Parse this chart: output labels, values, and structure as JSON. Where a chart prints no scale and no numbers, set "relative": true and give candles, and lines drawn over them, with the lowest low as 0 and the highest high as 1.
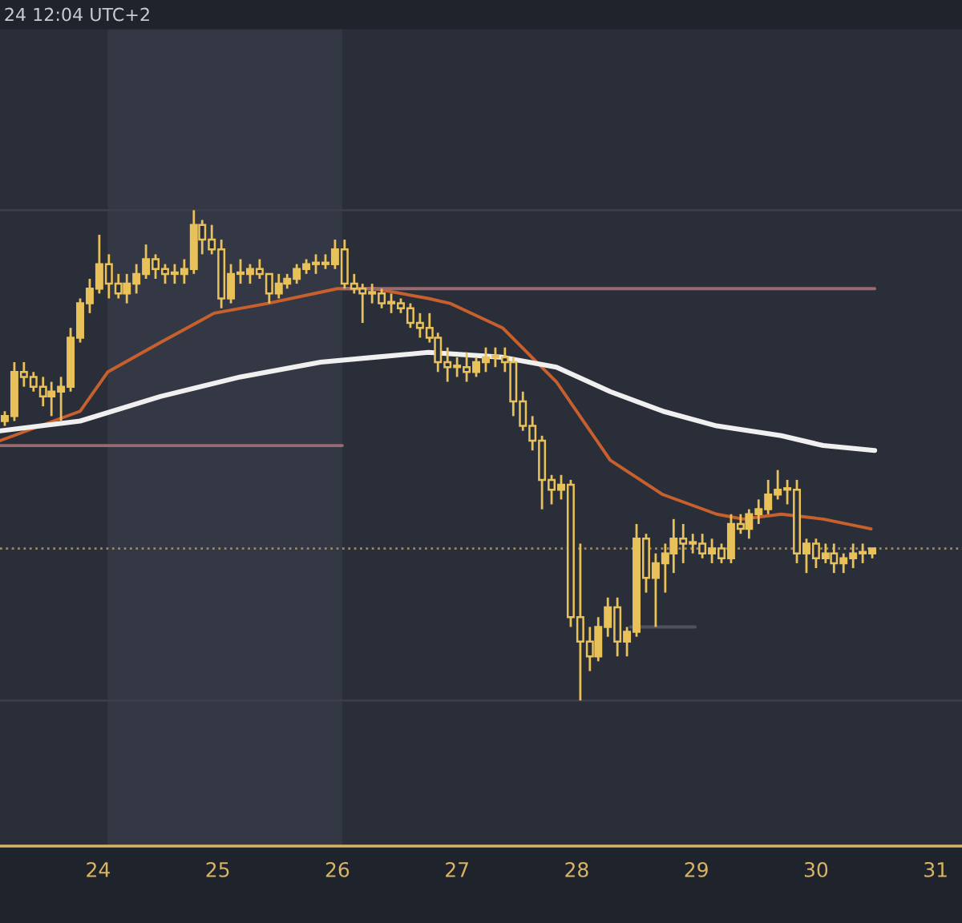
{
  "chart_data": {
    "type": "candlestick",
    "relative": true,
    "color": "#e8c15a",
    "annotations": [
      "24 12:04 UTC+2"
    ],
    "xlim": [
      23.18,
      31.22
    ],
    "xticks": [
      24,
      25,
      26,
      27,
      28,
      29,
      30,
      31
    ],
    "x": [
      23.22,
      23.3,
      23.38,
      23.46,
      23.54,
      23.61,
      23.69,
      23.77,
      23.85,
      23.93,
      24.01,
      24.09,
      24.17,
      24.24,
      24.32,
      24.4,
      24.48,
      24.56,
      24.64,
      24.72,
      24.8,
      24.87,
      24.95,
      25.03,
      25.11,
      25.19,
      25.27,
      25.35,
      25.43,
      25.51,
      25.58,
      25.66,
      25.74,
      25.82,
      25.9,
      25.98,
      26.06,
      26.14,
      26.21,
      26.29,
      26.37,
      26.45,
      26.53,
      26.61,
      26.69,
      26.77,
      26.84,
      26.92,
      27.0,
      27.08,
      27.16,
      27.24,
      27.32,
      27.4,
      27.47,
      27.55,
      27.63,
      27.71,
      27.79,
      27.87,
      27.95,
      28.03,
      28.11,
      28.18,
      28.26,
      28.34,
      28.42,
      28.5,
      28.58,
      28.66,
      28.74,
      28.81,
      28.89,
      28.97,
      29.05,
      29.13,
      29.21,
      29.29,
      29.37,
      29.44,
      29.52,
      29.6,
      29.68,
      29.76,
      29.84,
      29.92,
      30.0,
      30.08,
      30.15,
      30.23,
      30.31,
      30.39,
      30.47
    ],
    "ohlc": [
      [
        0.57,
        0.59,
        0.56,
        0.58
      ],
      [
        0.58,
        0.69,
        0.57,
        0.67
      ],
      [
        0.67,
        0.69,
        0.64,
        0.66
      ],
      [
        0.66,
        0.67,
        0.63,
        0.64
      ],
      [
        0.64,
        0.66,
        0.6,
        0.62
      ],
      [
        0.62,
        0.65,
        0.58,
        0.63
      ],
      [
        0.63,
        0.66,
        0.57,
        0.64
      ],
      [
        0.64,
        0.76,
        0.63,
        0.74
      ],
      [
        0.74,
        0.82,
        0.73,
        0.81
      ],
      [
        0.81,
        0.86,
        0.79,
        0.84
      ],
      [
        0.84,
        0.95,
        0.83,
        0.89
      ],
      [
        0.89,
        0.91,
        0.82,
        0.85
      ],
      [
        0.85,
        0.87,
        0.82,
        0.83
      ],
      [
        0.83,
        0.87,
        0.81,
        0.85
      ],
      [
        0.85,
        0.89,
        0.83,
        0.87
      ],
      [
        0.87,
        0.93,
        0.86,
        0.9
      ],
      [
        0.9,
        0.91,
        0.86,
        0.88
      ],
      [
        0.88,
        0.89,
        0.85,
        0.87
      ],
      [
        0.87,
        0.89,
        0.85,
        0.87
      ],
      [
        0.87,
        0.9,
        0.85,
        0.88
      ],
      [
        0.88,
        1.0,
        0.87,
        0.97
      ],
      [
        0.97,
        0.98,
        0.91,
        0.94
      ],
      [
        0.94,
        0.97,
        0.91,
        0.92
      ],
      [
        0.92,
        0.94,
        0.8,
        0.82
      ],
      [
        0.82,
        0.89,
        0.81,
        0.87
      ],
      [
        0.87,
        0.9,
        0.85,
        0.87
      ],
      [
        0.87,
        0.89,
        0.85,
        0.88
      ],
      [
        0.88,
        0.9,
        0.86,
        0.87
      ],
      [
        0.87,
        0.87,
        0.81,
        0.83
      ],
      [
        0.83,
        0.87,
        0.82,
        0.85
      ],
      [
        0.85,
        0.87,
        0.84,
        0.86
      ],
      [
        0.86,
        0.89,
        0.85,
        0.88
      ],
      [
        0.88,
        0.9,
        0.87,
        0.89
      ],
      [
        0.89,
        0.91,
        0.87,
        0.89
      ],
      [
        0.89,
        0.91,
        0.88,
        0.89
      ],
      [
        0.89,
        0.94,
        0.88,
        0.92
      ],
      [
        0.92,
        0.94,
        0.84,
        0.85
      ],
      [
        0.85,
        0.87,
        0.83,
        0.84
      ],
      [
        0.84,
        0.85,
        0.77,
        0.83
      ],
      [
        0.83,
        0.85,
        0.81,
        0.83
      ],
      [
        0.83,
        0.84,
        0.8,
        0.81
      ],
      [
        0.81,
        0.83,
        0.79,
        0.81
      ],
      [
        0.81,
        0.82,
        0.79,
        0.8
      ],
      [
        0.8,
        0.81,
        0.76,
        0.77
      ],
      [
        0.77,
        0.79,
        0.74,
        0.76
      ],
      [
        0.76,
        0.79,
        0.73,
        0.74
      ],
      [
        0.74,
        0.75,
        0.67,
        0.69
      ],
      [
        0.69,
        0.72,
        0.65,
        0.68
      ],
      [
        0.68,
        0.7,
        0.66,
        0.68
      ],
      [
        0.68,
        0.71,
        0.65,
        0.67
      ],
      [
        0.67,
        0.7,
        0.66,
        0.69
      ],
      [
        0.69,
        0.72,
        0.67,
        0.7
      ],
      [
        0.7,
        0.72,
        0.68,
        0.7
      ],
      [
        0.7,
        0.72,
        0.67,
        0.69
      ],
      [
        0.69,
        0.7,
        0.58,
        0.61
      ],
      [
        0.61,
        0.63,
        0.55,
        0.56
      ],
      [
        0.56,
        0.58,
        0.51,
        0.53
      ],
      [
        0.53,
        0.54,
        0.39,
        0.45
      ],
      [
        0.45,
        0.46,
        0.4,
        0.43
      ],
      [
        0.43,
        0.46,
        0.41,
        0.44
      ],
      [
        0.44,
        0.45,
        0.15,
        0.17
      ],
      [
        0.17,
        0.32,
        0.0,
        0.12
      ],
      [
        0.12,
        0.15,
        0.06,
        0.09
      ],
      [
        0.09,
        0.17,
        0.08,
        0.15
      ],
      [
        0.15,
        0.21,
        0.13,
        0.19
      ],
      [
        0.19,
        0.21,
        0.09,
        0.12
      ],
      [
        0.12,
        0.15,
        0.09,
        0.14
      ],
      [
        0.14,
        0.36,
        0.13,
        0.33
      ],
      [
        0.33,
        0.34,
        0.22,
        0.25
      ],
      [
        0.25,
        0.3,
        0.15,
        0.28
      ],
      [
        0.28,
        0.32,
        0.22,
        0.3
      ],
      [
        0.3,
        0.37,
        0.26,
        0.33
      ],
      [
        0.33,
        0.36,
        0.28,
        0.32
      ],
      [
        0.32,
        0.34,
        0.3,
        0.32
      ],
      [
        0.32,
        0.34,
        0.29,
        0.3
      ],
      [
        0.3,
        0.33,
        0.28,
        0.31
      ],
      [
        0.31,
        0.32,
        0.28,
        0.29
      ],
      [
        0.29,
        0.38,
        0.28,
        0.36
      ],
      [
        0.36,
        0.38,
        0.34,
        0.35
      ],
      [
        0.35,
        0.39,
        0.33,
        0.38
      ],
      [
        0.38,
        0.41,
        0.36,
        0.39
      ],
      [
        0.39,
        0.45,
        0.38,
        0.42
      ],
      [
        0.42,
        0.47,
        0.41,
        0.43
      ],
      [
        0.43,
        0.45,
        0.4,
        0.43
      ],
      [
        0.43,
        0.45,
        0.28,
        0.3
      ],
      [
        0.3,
        0.33,
        0.26,
        0.32
      ],
      [
        0.32,
        0.33,
        0.27,
        0.29
      ],
      [
        0.29,
        0.32,
        0.28,
        0.3
      ],
      [
        0.3,
        0.32,
        0.26,
        0.28
      ],
      [
        0.28,
        0.3,
        0.26,
        0.29
      ],
      [
        0.29,
        0.32,
        0.27,
        0.3
      ],
      [
        0.3,
        0.32,
        0.28,
        0.3
      ],
      [
        0.3,
        0.31,
        0.29,
        0.31
      ]
    ],
    "series": [
      {
        "type": "line",
        "color": "#c8602e",
        "x": [
          23.18,
          23.85,
          24.08,
          24.52,
          24.97,
          25.42,
          26.0,
          26.31,
          26.76,
          26.94,
          27.38,
          27.83,
          28.28,
          28.72,
          29.17,
          29.39,
          29.71,
          30.06,
          30.46
        ],
        "values": [
          0.53,
          0.59,
          0.67,
          0.73,
          0.79,
          0.81,
          0.84,
          0.84,
          0.82,
          0.81,
          0.76,
          0.65,
          0.49,
          0.42,
          0.38,
          0.37,
          0.38,
          0.37,
          0.35
        ]
      },
      {
        "type": "line",
        "color": "#f0f0f0",
        "x": [
          23.18,
          23.85,
          24.52,
          25.19,
          25.86,
          26.31,
          26.76,
          27.38,
          27.83,
          28.28,
          28.72,
          29.17,
          29.71,
          30.06,
          30.49
        ],
        "values": [
          0.55,
          0.57,
          0.62,
          0.66,
          0.69,
          0.7,
          0.71,
          0.7,
          0.68,
          0.63,
          0.59,
          0.56,
          0.54,
          0.52,
          0.51
        ]
      },
      {
        "type": "line",
        "color": "#9a6a70",
        "x": [
          26.04,
          30.49
        ],
        "values": [
          0.84,
          0.84
        ]
      },
      {
        "type": "line",
        "color": "#9a6a70",
        "x": [
          23.18,
          26.04
        ],
        "values": [
          0.52,
          0.52
        ]
      },
      {
        "type": "line",
        "color": "#4e5260",
        "x": [
          28.45,
          28.99
        ],
        "values": [
          0.15,
          0.15
        ]
      }
    ],
    "ref_lines": [
      {
        "axis": "y",
        "value": 1.0,
        "color": "#3a3e4a",
        "line_style": "solid"
      },
      {
        "axis": "y",
        "value": 0.0,
        "color": "#3a3e4a",
        "line_style": "solid"
      },
      {
        "axis": "y",
        "value": 0.31,
        "color": "#a8844e",
        "line_style": "dotted"
      }
    ],
    "bands": [
      {
        "axis": "x",
        "from": 24.08,
        "to": 26.04,
        "color": "#343845"
      }
    ]
  }
}
